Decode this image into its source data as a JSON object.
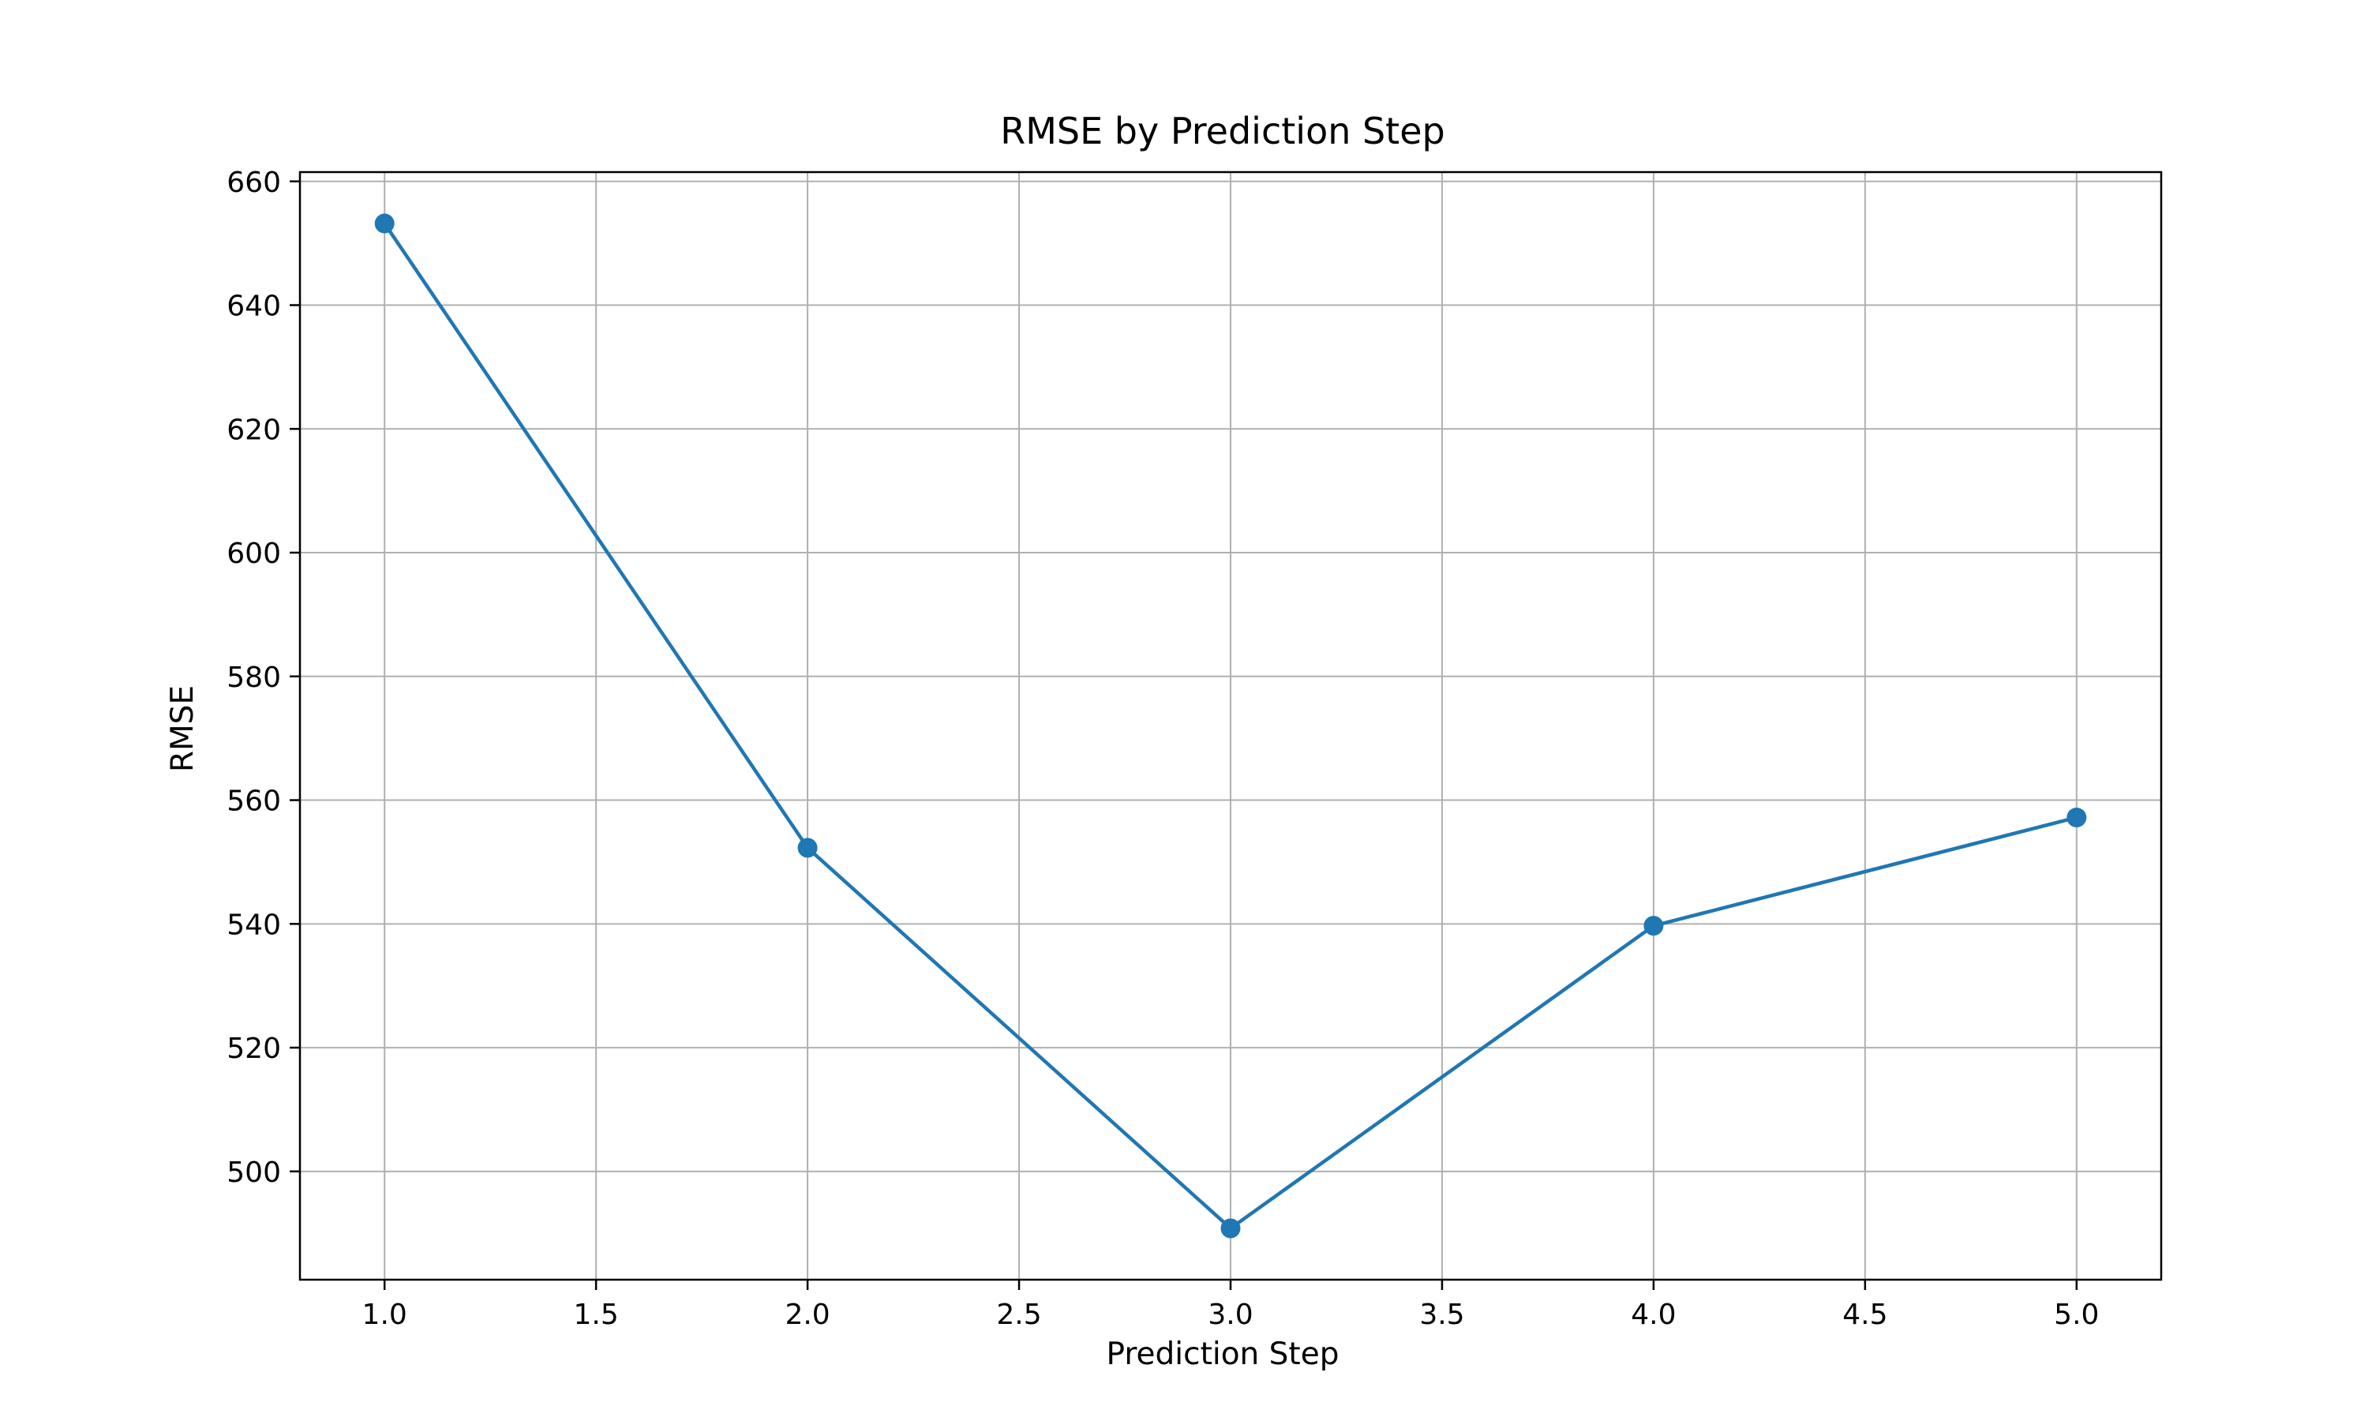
{
  "chart_data": {
    "type": "line",
    "title": "RMSE by Prediction Step",
    "xlabel": "Prediction Step",
    "ylabel": "RMSE",
    "xlim": [
      0.8,
      5.2
    ],
    "ylim": [
      482.5,
      661.5
    ],
    "grid": true,
    "x_ticks": [
      1.0,
      1.5,
      2.0,
      2.5,
      3.0,
      3.5,
      4.0,
      4.5,
      5.0
    ],
    "x_tick_labels": [
      "1.0",
      "1.5",
      "2.0",
      "2.5",
      "3.0",
      "3.5",
      "4.0",
      "4.5",
      "5.0"
    ],
    "y_ticks": [
      500,
      520,
      540,
      560,
      580,
      600,
      620,
      640,
      660
    ],
    "y_tick_labels": [
      "500",
      "520",
      "540",
      "560",
      "580",
      "600",
      "620",
      "640",
      "660"
    ],
    "series": [
      {
        "color": "#1f77b4",
        "marker": "circle",
        "x": [
          1,
          2,
          3,
          4,
          5
        ],
        "values": [
          653.2,
          552.3,
          490.8,
          539.7,
          557.2
        ]
      }
    ]
  }
}
